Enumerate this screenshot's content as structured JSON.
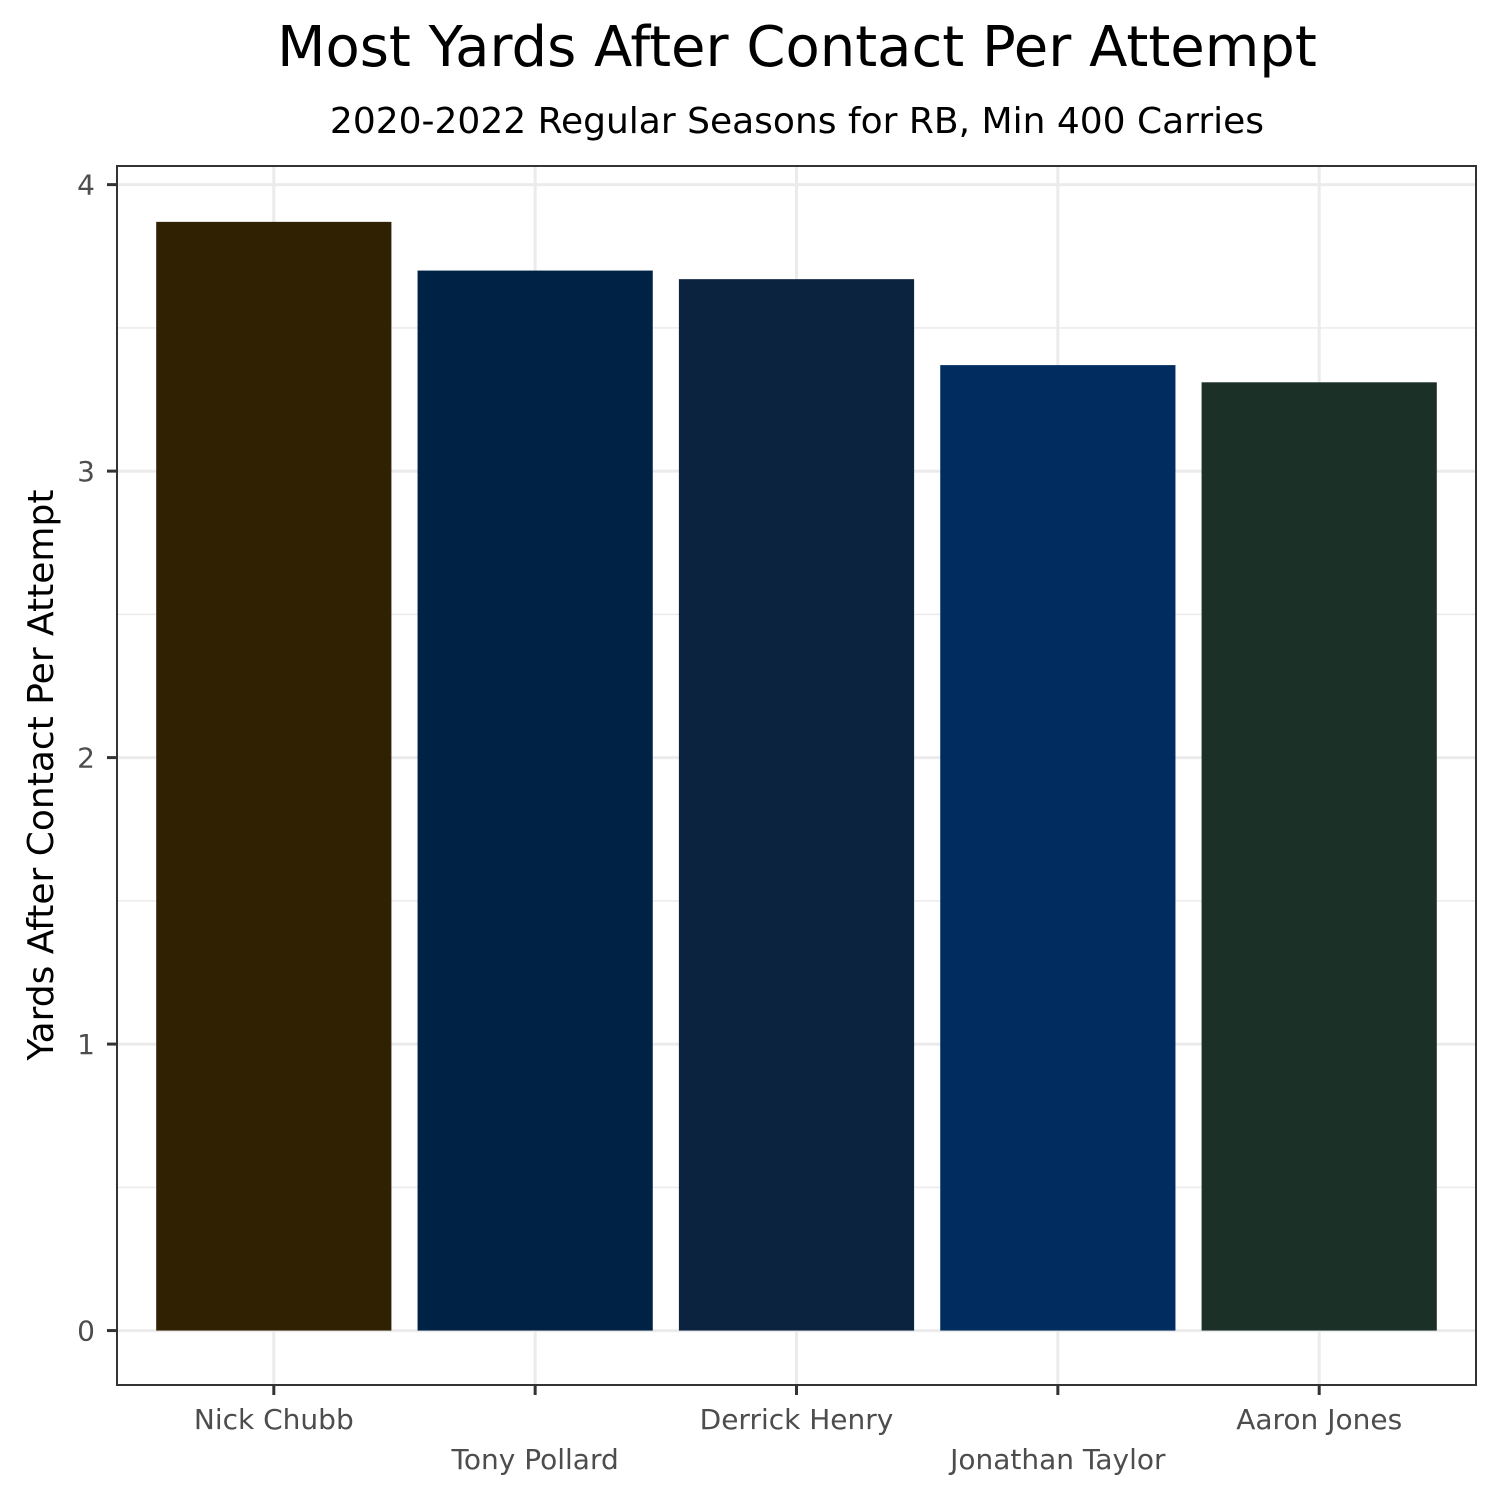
{
  "chart_data": {
    "type": "bar",
    "title": "Most Yards After Contact Per Attempt",
    "subtitle": "2020-2022 Regular Seasons for RB, Min 400 Carries",
    "xlabel": "",
    "ylabel": "Yards  After  Contact  Per  Attempt",
    "categories": [
      "Nick Chubb",
      "Tony Pollard",
      "Derrick Henry",
      "Jonathan Taylor",
      "Aaron Jones"
    ],
    "values": [
      3.87,
      3.7,
      3.67,
      3.37,
      3.31
    ],
    "colors": [
      "#312103",
      "#002244",
      "#0C2340",
      "#002C5F",
      "#1B3128"
    ],
    "ylim": [
      -0.19,
      4.065
    ],
    "yticks": [
      0,
      1,
      2,
      3,
      4
    ],
    "grid": true,
    "legend": "none"
  }
}
